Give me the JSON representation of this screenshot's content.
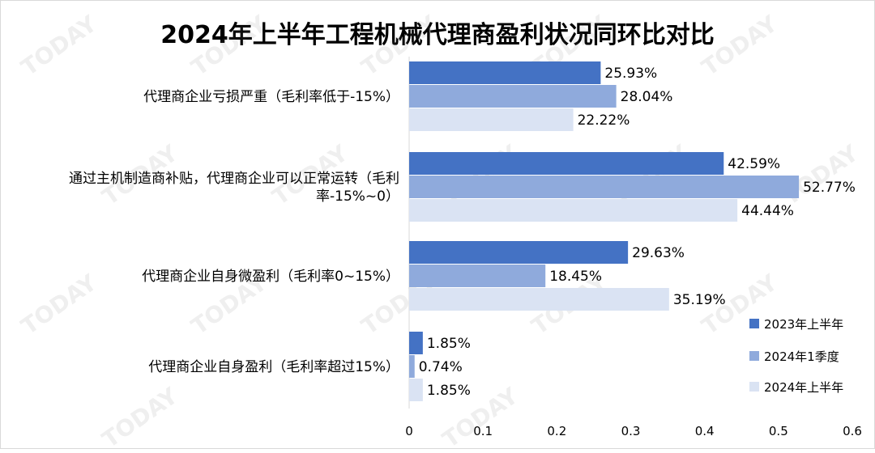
{
  "chart_data": {
    "type": "bar",
    "orientation": "horizontal",
    "title": "2024年上半年工程机械代理商盈利状况同环比对比",
    "categories": [
      "代理商企业亏损严重（毛利率低于-15%）",
      "通过主机制造商补贴，代理商企业可以正常运转（毛利率-15%~0）",
      "代理商企业自身微盈利（毛利率0~15%）",
      "代理商企业自身盈利（毛利率超过15%）"
    ],
    "series": [
      {
        "name": "2023年上半年",
        "values": [
          0.2593,
          0.4259,
          0.2963,
          0.0185
        ],
        "labels": [
          "25.93%",
          "42.59%",
          "29.63%",
          "1.85%"
        ],
        "color": "#4472c4"
      },
      {
        "name": "2024年1季度",
        "values": [
          0.2804,
          0.5277,
          0.1845,
          0.0074
        ],
        "labels": [
          "28.04%",
          "52.77%",
          "18.45%",
          "0.74%"
        ],
        "color": "#8faadc"
      },
      {
        "name": "2024年上半年",
        "values": [
          0.2222,
          0.4444,
          0.3519,
          0.0185
        ],
        "labels": [
          "22.22%",
          "44.44%",
          "35.19%",
          "1.85%"
        ],
        "color": "#dae3f3"
      }
    ],
    "xlim": [
      0,
      0.6
    ],
    "xticks": [
      0,
      0.1,
      0.2,
      0.3,
      0.4,
      0.5,
      0.6
    ],
    "xtick_labels": [
      "0",
      "0.1",
      "0.2",
      "0.3",
      "0.4",
      "0.5",
      "0.6"
    ],
    "grid": false,
    "legend_position": "right"
  },
  "watermark": {
    "text": "TODAY"
  }
}
